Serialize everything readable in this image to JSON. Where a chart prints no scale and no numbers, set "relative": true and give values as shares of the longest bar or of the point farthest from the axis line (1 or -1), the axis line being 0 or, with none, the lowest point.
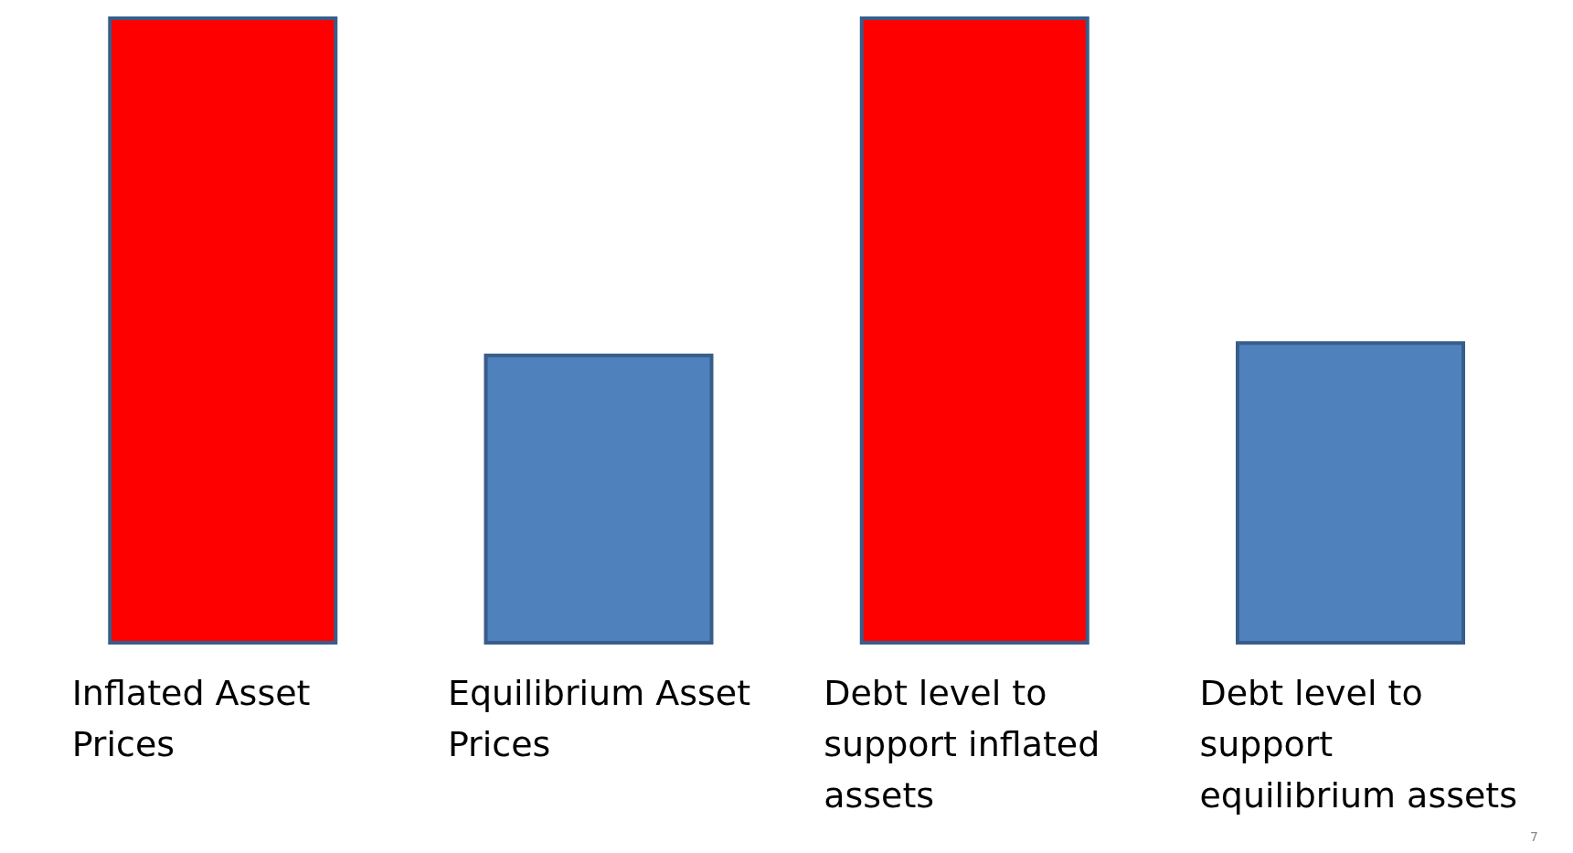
{
  "chart_data": {
    "type": "bar",
    "relative": true,
    "categories": [
      "Inflated Asset Prices",
      "Equilibrium Asset Prices",
      "Debt level to support inflated assets",
      "Debt level to support equilibrium assets"
    ],
    "values": [
      1,
      0.46,
      1,
      0.48
    ],
    "colors": [
      "#ff0000",
      "#4f81bd",
      "#ff0000",
      "#4f81bd"
    ],
    "annotations": [
      "7"
    ]
  }
}
